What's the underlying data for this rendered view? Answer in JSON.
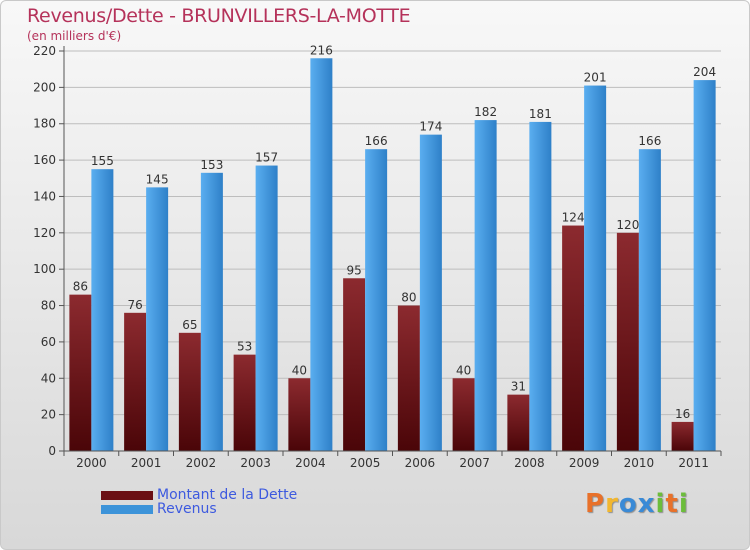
{
  "header": {
    "title": "Revenus/Dette - BRUNVILLERS-LA-MOTTE",
    "subtitle": "(en milliers d'€)"
  },
  "legend": {
    "dette_label": "Montant de la Dette",
    "revenus_label": "Revenus"
  },
  "logo": {
    "letters": [
      "P",
      "r",
      "o",
      "x",
      "i",
      "t",
      "i"
    ],
    "colors": [
      "#e8712a",
      "#f2b730",
      "#3a8ad6",
      "#3a8ad6",
      "#6cbd3b",
      "#e8712a",
      "#6cbd3b"
    ]
  },
  "colors": {
    "dette": "#6b0f14",
    "revenus": "#3c93d9"
  },
  "chart_data": {
    "type": "bar",
    "categories": [
      "2000",
      "2001",
      "2002",
      "2003",
      "2004",
      "2005",
      "2006",
      "2007",
      "2008",
      "2009",
      "2010",
      "2011"
    ],
    "series": [
      {
        "name": "Montant de la Dette",
        "values": [
          86,
          76,
          65,
          53,
          40,
          95,
          80,
          40,
          31,
          124,
          120,
          16
        ]
      },
      {
        "name": "Revenus",
        "values": [
          155,
          145,
          153,
          157,
          216,
          166,
          174,
          182,
          181,
          201,
          166,
          204
        ]
      }
    ],
    "ylim": [
      0,
      220
    ],
    "yticks": [
      0,
      20,
      40,
      60,
      80,
      100,
      120,
      140,
      160,
      180,
      200,
      220
    ],
    "grid": true,
    "legend_position": "bottom-left"
  }
}
